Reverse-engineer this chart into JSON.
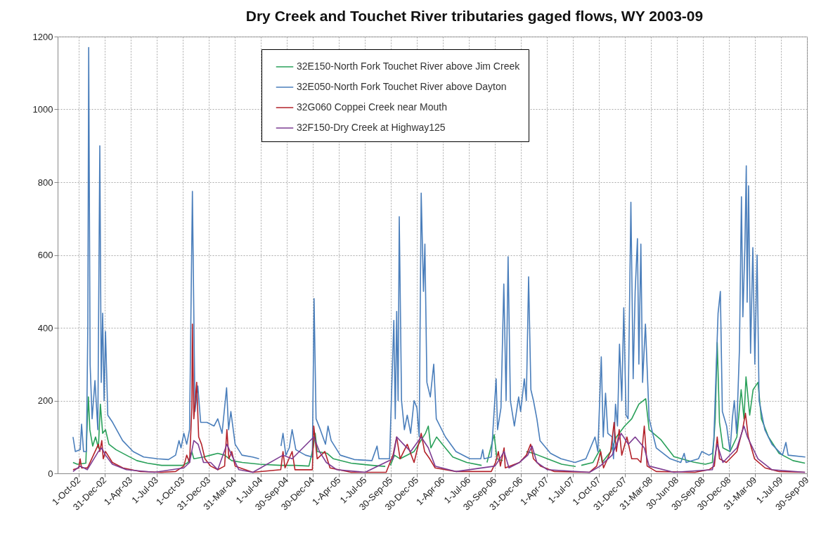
{
  "chart_data": {
    "type": "line",
    "title": "Dry Creek and Touchet River tributaries gaged flows, WY 2003-09",
    "xlim": [
      "2002-07-19",
      "2009-09-30"
    ],
    "xticks": [
      {
        "value": "2002-10-01",
        "label": "1-Oct-02"
      },
      {
        "value": "2002-12-31",
        "label": "31-Dec-02"
      },
      {
        "value": "2003-04-01",
        "label": "1-Apr-03"
      },
      {
        "value": "2003-07-01",
        "label": "1-Jul-03"
      },
      {
        "value": "2003-10-01",
        "label": "1-Oct-03"
      },
      {
        "value": "2003-12-31",
        "label": "31-Dec-03"
      },
      {
        "value": "2004-03-31",
        "label": "31-Mar-04"
      },
      {
        "value": "2004-07-01",
        "label": "1-Jul-04"
      },
      {
        "value": "2004-09-30",
        "label": "30-Sep-04"
      },
      {
        "value": "2004-12-30",
        "label": "30-Dec-04"
      },
      {
        "value": "2005-04-01",
        "label": "1-Apr-05"
      },
      {
        "value": "2005-07-01",
        "label": "1-Jul-05"
      },
      {
        "value": "2005-09-30",
        "label": "30-Sep-05"
      },
      {
        "value": "2005-12-30",
        "label": "30-Dec-05"
      },
      {
        "value": "2006-04-01",
        "label": "1-Apr-06"
      },
      {
        "value": "2006-07-01",
        "label": "1-Jul-06"
      },
      {
        "value": "2006-09-30",
        "label": "30-Sep-06"
      },
      {
        "value": "2006-12-31",
        "label": "31-Dec-06"
      },
      {
        "value": "2007-04-01",
        "label": "1-Apr-07"
      },
      {
        "value": "2007-07-01",
        "label": "1-Jul-07"
      },
      {
        "value": "2007-10-01",
        "label": "1-Oct-07"
      },
      {
        "value": "2007-12-31",
        "label": "31-Dec-07"
      },
      {
        "value": "2008-03-31",
        "label": "31-Mar-08"
      },
      {
        "value": "2008-06-30",
        "label": "30-Jun-08"
      },
      {
        "value": "2008-09-30",
        "label": "30-Sep-08"
      },
      {
        "value": "2008-12-30",
        "label": "30-Dec-08"
      },
      {
        "value": "2009-03-31",
        "label": "31-Mar-09"
      },
      {
        "value": "2009-07-01",
        "label": "1-Jul-09"
      },
      {
        "value": "2009-09-30",
        "label": "30-Sep-09"
      }
    ],
    "ylim": [
      0,
      1200
    ],
    "yticks": [
      0,
      200,
      400,
      600,
      800,
      1000,
      1200
    ],
    "grid": true,
    "legend": "top",
    "line_style": "solid",
    "marker": "none",
    "series": [
      {
        "name": "32E150-North Fork Touchet River above Jim Creek",
        "color": "#2aa05a",
        "x": [
          "2002-09-11",
          "2002-09-26",
          "2002-10-26",
          "2002-10-31",
          "2002-11-04",
          "2002-11-09",
          "2002-11-19",
          "2002-11-29",
          "2002-12-09",
          "2002-12-16",
          "2002-12-24",
          "2003-01-03",
          "2003-01-15",
          "2003-02-09",
          "2003-03-17",
          "2003-04-23",
          "2003-05-30",
          "2003-07-19",
          "2003-10-01",
          "2003-10-20",
          "2003-11-02",
          "2003-11-09",
          "2003-12-13",
          "2004-01-07",
          "2004-02-01",
          "2004-02-25",
          "2004-03-21",
          "2004-04-27",
          "2004-06-27",
          "2004-09-09",
          "2004-10-29",
          "2004-12-17",
          "2005-01-01",
          "2005-01-08",
          "2005-01-15",
          "2005-02-19",
          "2005-03-13",
          "2005-05-14",
          "2005-07-27",
          "2005-09-11",
          "2005-09-19",
          "2005-09-29",
          "2005-10-13",
          "2005-11-02",
          "2005-12-21",
          "2006-01-30",
          "2006-02-09",
          "2006-02-18",
          "2006-03-10",
          "2006-03-30",
          "2006-05-06",
          "2006-06-24",
          "2006-08-15",
          "2006-08-20",
          "2006-09-03",
          "2006-09-28",
          "2006-10-08",
          "2006-10-28",
          "2006-12-26",
          "2007-01-19",
          "2007-02-13",
          "2007-04-03",
          "2007-05-23",
          "2007-07-11",
          "2007-07-21",
          "2007-07-31",
          "2007-09-10",
          "2007-10-05",
          "2007-10-12",
          "2007-11-11",
          "2007-12-01",
          "2007-12-30",
          "2008-01-24",
          "2008-02-18",
          "2008-03-13",
          "2008-03-25",
          "2008-05-06",
          "2008-06-20",
          "2008-08-28",
          "2008-10-08",
          "2008-11-02",
          "2008-11-12",
          "2008-11-19",
          "2008-11-27",
          "2008-12-09",
          "2009-01-03",
          "2009-01-27",
          "2009-02-11",
          "2009-02-21",
          "2009-02-28",
          "2009-03-13",
          "2009-03-25",
          "2009-04-11",
          "2009-04-23",
          "2009-05-18",
          "2009-06-24",
          "2009-08-12",
          "2009-09-23"
        ],
        "values": [
          30,
          25,
          28,
          140,
          210,
          120,
          75,
          100,
          70,
          190,
          110,
          120,
          80,
          65,
          50,
          35,
          28,
          22,
          22,
          30,
          60,
          40,
          45,
          50,
          55,
          50,
          35,
          30,
          25,
          22,
          22,
          20,
          70,
          110,
          60,
          55,
          40,
          28,
          22,
          19,
          null,
          22,
          50,
          40,
          60,
          110,
          130,
          70,
          100,
          80,
          45,
          30,
          22,
          null,
          30,
          106,
          40,
          35,
          null,
          60,
          55,
          40,
          25,
          19,
          null,
          22,
          30,
          66,
          30,
          60,
          100,
          130,
          150,
          190,
          205,
          120,
          92,
          46,
          31,
          25,
          30,
          150,
          360,
          140,
          70,
          60,
          100,
          230,
          150,
          265,
          160,
          230,
          250,
          150,
          100,
          55,
          35,
          28
        ]
      },
      {
        "name": "32E050-North Fork Touchet River above Dayton",
        "color": "#4a7ebb",
        "x": [
          "2002-09-11",
          "2002-09-19",
          "2002-10-06",
          "2002-10-11",
          "2002-10-18",
          "2002-10-28",
          "2002-11-02",
          "2002-11-05",
          "2002-11-10",
          "2002-11-17",
          "2002-11-27",
          "2002-12-07",
          "2002-12-14",
          "2002-12-19",
          "2002-12-24",
          "2002-12-29",
          "2003-01-03",
          "2003-01-11",
          "2003-01-28",
          "2003-03-04",
          "2003-04-10",
          "2003-05-17",
          "2003-07-05",
          "2003-08-12",
          "2003-09-06",
          "2003-09-18",
          "2003-09-25",
          "2003-10-05",
          "2003-10-15",
          "2003-10-25",
          "2003-11-04",
          "2003-11-13",
          "2003-11-23",
          "2003-12-03",
          "2003-12-25",
          "2004-01-19",
          "2004-02-01",
          "2004-02-16",
          "2004-03-03",
          "2004-03-10",
          "2004-03-18",
          "2004-04-02",
          "2004-04-26",
          "2004-06-02",
          "2004-06-25",
          "2004-07-21",
          "2004-09-10",
          "2004-09-17",
          "2004-09-27",
          "2004-10-09",
          "2004-10-19",
          "2004-11-01",
          "2004-12-05",
          "2004-12-29",
          "2005-01-04",
          "2005-01-11",
          "2005-01-26",
          "2005-02-13",
          "2005-02-22",
          "2005-03-05",
          "2005-04-06",
          "2005-05-25",
          "2005-07-26",
          "2005-08-13",
          "2005-08-20",
          "2005-09-26",
          "2005-10-11",
          "2005-10-16",
          "2005-10-21",
          "2005-10-26",
          "2005-10-30",
          "2005-11-07",
          "2005-11-17",
          "2005-11-27",
          "2005-12-09",
          "2005-12-21",
          "2005-12-31",
          "2006-01-08",
          "2006-01-15",
          "2006-01-23",
          "2006-01-28",
          "2006-02-04",
          "2006-02-16",
          "2006-02-28",
          "2006-03-09",
          "2006-04-10",
          "2006-05-17",
          "2006-07-05",
          "2006-08-12",
          "2006-08-19",
          "2006-08-24",
          "2006-09-18",
          "2006-10-05",
          "2006-10-10",
          "2006-10-22",
          "2006-11-01",
          "2006-11-09",
          "2006-11-16",
          "2006-11-24",
          "2006-12-08",
          "2006-12-23",
          "2006-12-30",
          "2007-01-12",
          "2007-01-19",
          "2007-01-27",
          "2007-02-04",
          "2007-02-13",
          "2007-02-25",
          "2007-03-08",
          "2007-04-14",
          "2007-05-21",
          "2007-07-09",
          "2007-08-16",
          "2007-09-17",
          "2007-09-27",
          "2007-10-09",
          "2007-10-16",
          "2007-10-24",
          "2007-11-01",
          "2007-11-16",
          "2007-11-21",
          "2007-11-28",
          "2007-12-05",
          "2007-12-12",
          "2007-12-20",
          "2007-12-27",
          "2008-01-04",
          "2008-01-11",
          "2008-01-21",
          "2008-01-29",
          "2008-02-05",
          "2008-02-13",
          "2008-02-18",
          "2008-02-25",
          "2008-03-02",
          "2008-03-12",
          "2008-03-25",
          "2008-04-19",
          "2008-06-07",
          "2008-07-14",
          "2008-07-26",
          "2008-08-02",
          "2008-09-14",
          "2008-09-26",
          "2008-10-21",
          "2008-11-02",
          "2008-11-07",
          "2008-11-15",
          "2008-11-22",
          "2008-11-30",
          "2008-12-07",
          "2008-12-22",
          "2009-01-03",
          "2009-01-11",
          "2009-01-18",
          "2009-01-26",
          "2009-02-05",
          "2009-02-12",
          "2009-02-17",
          "2009-02-24",
          "2009-03-01",
          "2009-03-04",
          "2009-03-09",
          "2009-03-16",
          "2009-03-24",
          "2009-03-31",
          "2009-04-08",
          "2009-04-15",
          "2009-05-05",
          "2009-05-30",
          "2009-07-06",
          "2009-07-18",
          "2009-07-26",
          "2009-09-24"
        ],
        "values": [
          100,
          60,
          65,
          135,
          60,
          60,
          410,
          1170,
          300,
          150,
          255,
          120,
          900,
          250,
          440,
          200,
          390,
          160,
          140,
          90,
          60,
          45,
          40,
          38,
          50,
          90,
          70,
          110,
          80,
          120,
          775,
          170,
          240,
          140,
          140,
          130,
          150,
          110,
          235,
          120,
          170,
          80,
          50,
          45,
          40,
          null,
          75,
          110,
          50,
          70,
          120,
          65,
          50,
          45,
          480,
          150,
          120,
          80,
          130,
          90,
          50,
          38,
          35,
          75,
          40,
          40,
          420,
          150,
          445,
          200,
          705,
          200,
          120,
          160,
          110,
          200,
          180,
          100,
          770,
          500,
          630,
          250,
          210,
          300,
          150,
          100,
          60,
          40,
          40,
          65,
          40,
          45,
          260,
          120,
          180,
          520,
          200,
          595,
          200,
          130,
          210,
          170,
          260,
          200,
          540,
          230,
          200,
          150,
          90,
          55,
          40,
          30,
          40,
          100,
          60,
          320,
          100,
          220,
          110,
          100,
          40,
          190,
          130,
          355,
          200,
          455,
          160,
          150,
          745,
          260,
          500,
          645,
          300,
          630,
          250,
          410,
          150,
          70,
          40,
          30,
          55,
          30,
          40,
          60,
          50,
          55,
          90,
          280,
          440,
          500,
          170,
          130,
          60,
          150,
          200,
          110,
          340,
          760,
          430,
          620,
          845,
          470,
          790,
          330,
          620,
          300,
          600,
          200,
          120,
          80,
          50,
          85,
          50,
          45
        ]
      },
      {
        "name": "32G060 Coppei Creek near Mouth",
        "color": "#b3222a",
        "x": [
          "2002-09-11",
          "2002-10-01",
          "2002-10-06",
          "2002-10-11",
          "2002-10-31",
          "2002-11-04",
          "2002-12-09",
          "2002-12-14",
          "2002-12-21",
          "2002-12-26",
          "2003-01-03",
          "2003-01-27",
          "2003-03-05",
          "2003-05-06",
          "2003-07-19",
          "2003-09-06",
          "2003-10-05",
          "2003-10-15",
          "2003-10-25",
          "2003-11-02",
          "2003-11-04",
          "2003-11-09",
          "2003-11-19",
          "2003-11-26",
          "2003-12-06",
          "2003-12-18",
          "2004-01-07",
          "2004-02-01",
          "2004-02-25",
          "2004-03-04",
          "2004-03-11",
          "2004-03-21",
          "2004-04-02",
          "2004-06-03",
          "2004-09-09",
          "2004-09-17",
          "2004-09-24",
          "2004-10-19",
          "2004-10-29",
          "2004-12-29",
          "2005-01-03",
          "2005-01-15",
          "2005-02-11",
          "2005-03-01",
          "2005-05-14",
          "2005-09-14",
          "2005-10-08",
          "2005-10-21",
          "2005-11-02",
          "2005-11-27",
          "2005-12-21",
          "2006-01-15",
          "2006-01-27",
          "2006-02-14",
          "2006-03-05",
          "2006-05-18",
          "2006-09-18",
          "2006-10-03",
          "2006-10-13",
          "2006-10-20",
          "2006-11-02",
          "2006-11-06",
          "2006-12-26",
          "2007-01-19",
          "2007-02-03",
          "2007-02-13",
          "2007-03-10",
          "2007-04-28",
          "2007-08-29",
          "2007-09-23",
          "2007-10-07",
          "2007-10-17",
          "2007-11-11",
          "2007-11-23",
          "2007-12-01",
          "2007-12-11",
          "2007-12-20",
          "2008-01-07",
          "2008-01-24",
          "2008-02-13",
          "2008-02-25",
          "2008-03-08",
          "2008-03-18",
          "2008-04-19",
          "2008-09-02",
          "2008-10-21",
          "2008-11-09",
          "2008-11-19",
          "2008-11-27",
          "2008-12-21",
          "2009-01-27",
          "2009-02-16",
          "2009-02-26",
          "2009-03-08",
          "2009-03-30",
          "2009-05-06",
          "2009-06-24",
          "2009-09-23"
        ],
        "values": [
          10,
          15,
          40,
          15,
          15,
          20,
          80,
          60,
          90,
          40,
          60,
          30,
          15,
          5,
          3,
          5,
          20,
          50,
          30,
          180,
          410,
          150,
          250,
          100,
          80,
          40,
          20,
          10,
          20,
          120,
          40,
          60,
          20,
          3,
          10,
          60,
          15,
          60,
          10,
          10,
          130,
          40,
          60,
          15,
          3,
          3,
          50,
          100,
          40,
          80,
          30,
          110,
          60,
          40,
          15,
          5,
          5,
          30,
          60,
          20,
          70,
          15,
          30,
          50,
          80,
          40,
          20,
          5,
          3,
          20,
          60,
          15,
          60,
          140,
          60,
          120,
          50,
          100,
          40,
          40,
          30,
          130,
          20,
          5,
          3,
          10,
          20,
          100,
          40,
          30,
          60,
          120,
          165,
          100,
          40,
          15,
          5,
          3
        ]
      },
      {
        "name": "32F150-Dry Creek at Highway125",
        "color": "#7d3c92",
        "x": [
          "2002-09-11",
          "2002-10-06",
          "2002-10-31",
          "2002-12-09",
          "2002-12-21",
          "2003-01-03",
          "2003-01-27",
          "2003-03-17",
          "2003-06-24",
          "2003-10-05",
          "2003-10-25",
          "2003-11-09",
          "2003-11-24",
          "2003-12-13",
          "2004-01-07",
          "2004-02-01",
          "2004-03-04",
          "2004-03-21",
          "2004-04-15",
          "2004-06-03",
          "2004-09-17",
          "2004-10-19",
          "2005-01-03",
          "2005-01-23",
          "2005-02-16",
          "2005-03-25",
          "2005-07-02",
          "2005-10-08",
          "2005-10-21",
          "2005-11-14",
          "2005-12-09",
          "2006-01-15",
          "2006-02-09",
          "2006-03-05",
          "2006-05-18",
          "2006-10-01",
          "2006-10-18",
          "2006-11-02",
          "2006-11-19",
          "2006-12-26",
          "2007-01-24",
          "2007-02-08",
          "2007-02-25",
          "2007-04-03",
          "2007-08-29",
          "2007-10-05",
          "2007-11-16",
          "2007-12-18",
          "2008-01-12",
          "2008-02-05",
          "2008-03-08",
          "2008-03-25",
          "2008-06-20",
          "2008-11-02",
          "2008-11-19",
          "2008-12-09",
          "2009-01-27",
          "2009-02-21",
          "2009-03-05",
          "2009-04-11",
          "2009-05-30",
          "2009-09-23"
        ],
        "values": [
          5,
          20,
          10,
          60,
          70,
          50,
          25,
          10,
          3,
          15,
          30,
          90,
          80,
          30,
          30,
          10,
          80,
          50,
          10,
          3,
          50,
          40,
          100,
          60,
          30,
          10,
          3,
          40,
          100,
          80,
          60,
          100,
          70,
          20,
          5,
          20,
          40,
          60,
          15,
          30,
          50,
          75,
          30,
          10,
          3,
          20,
          50,
          110,
          80,
          100,
          70,
          20,
          3,
          10,
          80,
          30,
          70,
          130,
          100,
          40,
          10,
          3
        ]
      }
    ]
  }
}
